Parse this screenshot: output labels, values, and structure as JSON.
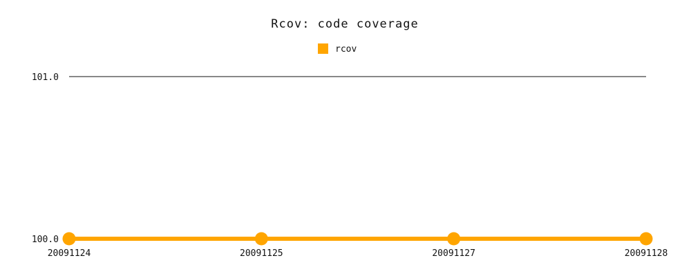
{
  "chart_data": {
    "type": "line",
    "title": "Rcov: code coverage",
    "categories": [
      "20091124",
      "20091125",
      "20091127",
      "20091128"
    ],
    "series": [
      {
        "name": "rcov",
        "values": [
          100.0,
          100.0,
          100.0,
          100.0
        ],
        "color": "#ffa500"
      }
    ],
    "yticks": [
      "101.0",
      "100.0"
    ],
    "ylim": [
      100.0,
      101.0
    ],
    "legend_position": "top-center",
    "grid": "horizontal-top-only"
  }
}
